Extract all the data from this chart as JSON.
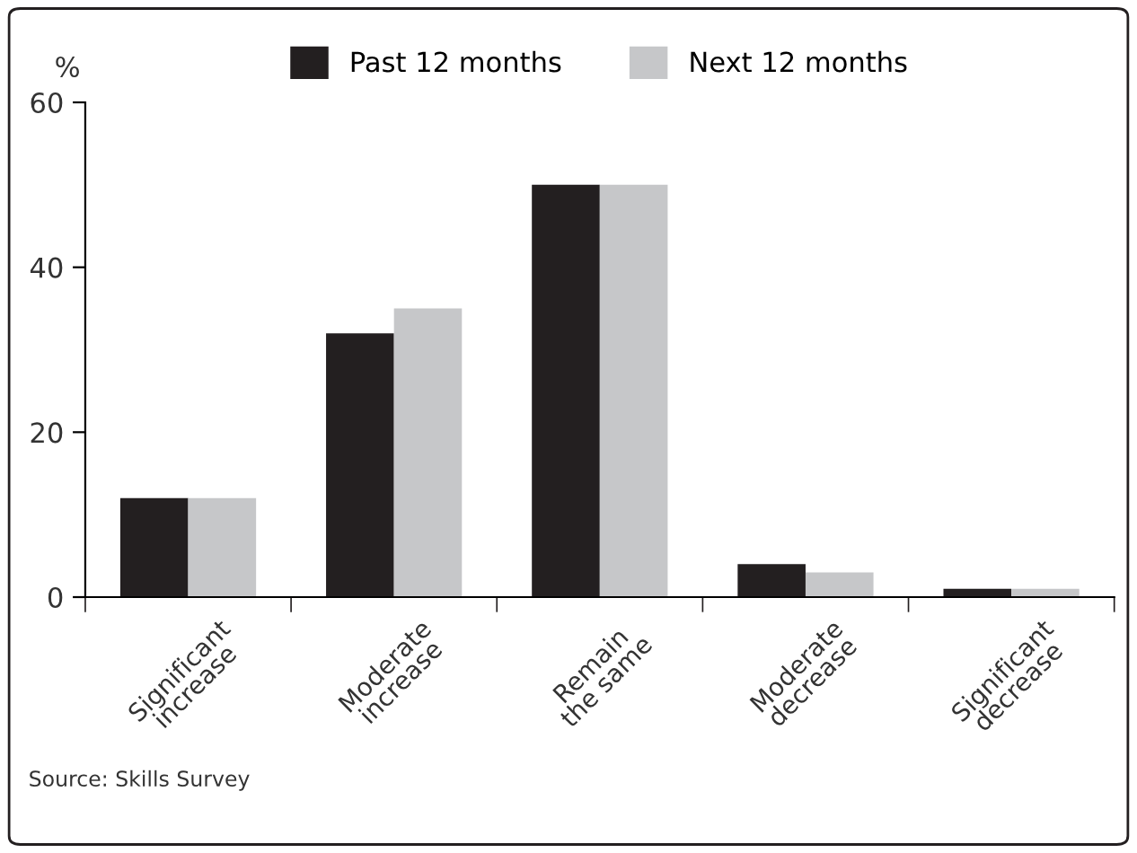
{
  "chart_data": {
    "type": "bar",
    "ylabel": "%",
    "categories": [
      "Significant\nincrease",
      "Moderate\nincrease",
      "Remain\nthe same",
      "Moderate\ndecrease",
      "Significant\ndecrease"
    ],
    "series": [
      {
        "name": "Past 12 months",
        "color": "#231f20",
        "values": [
          12,
          32,
          50,
          4,
          1
        ]
      },
      {
        "name": "Next 12 months",
        "color": "#c6c7c9",
        "values": [
          12,
          35,
          50,
          3,
          1
        ]
      }
    ],
    "ylim": [
      0,
      60
    ],
    "yticks": [
      0,
      20,
      40,
      60
    ],
    "grid": false,
    "legend": "top",
    "annotations": [
      "Source: Skills Survey"
    ]
  }
}
